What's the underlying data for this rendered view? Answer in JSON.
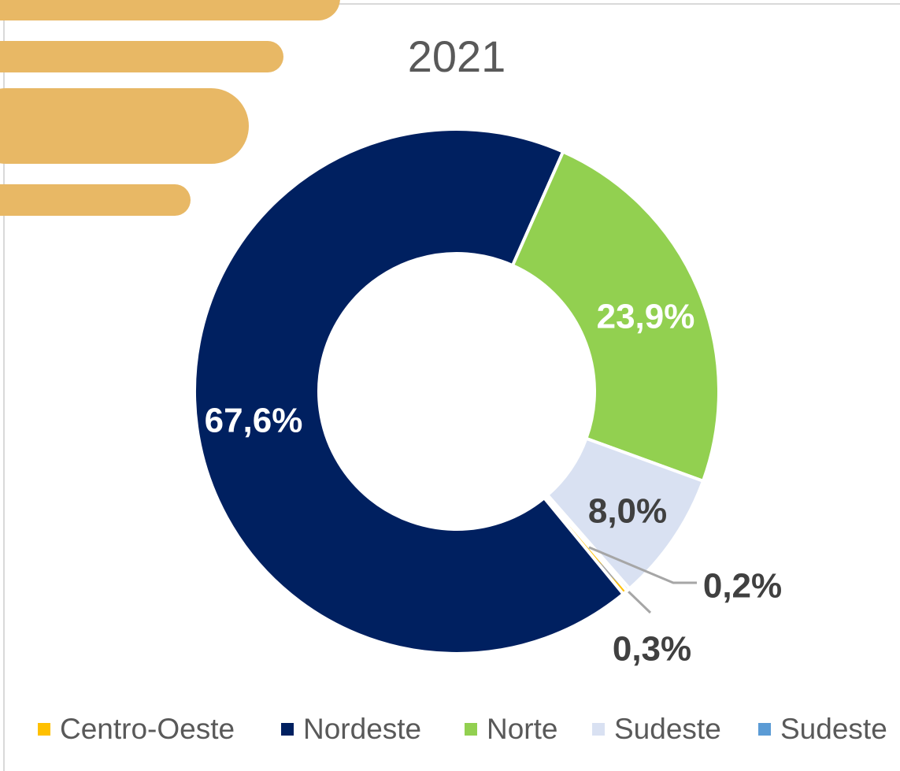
{
  "chart_data": {
    "type": "donut",
    "title": "2021",
    "categories": [
      "Centro-Oeste",
      "Nordeste",
      "Norte",
      "Sudeste",
      "Sudeste"
    ],
    "values": [
      0.3,
      67.6,
      23.9,
      8.0,
      0.2
    ],
    "value_labels": [
      "0,3%",
      "67,6%",
      "23,9%",
      "8,0%",
      "0,2%"
    ],
    "colors": [
      "#FFC000",
      "#002060",
      "#92D050",
      "#D9E1F2",
      "#5B9BD5"
    ],
    "legend": "bottom"
  }
}
